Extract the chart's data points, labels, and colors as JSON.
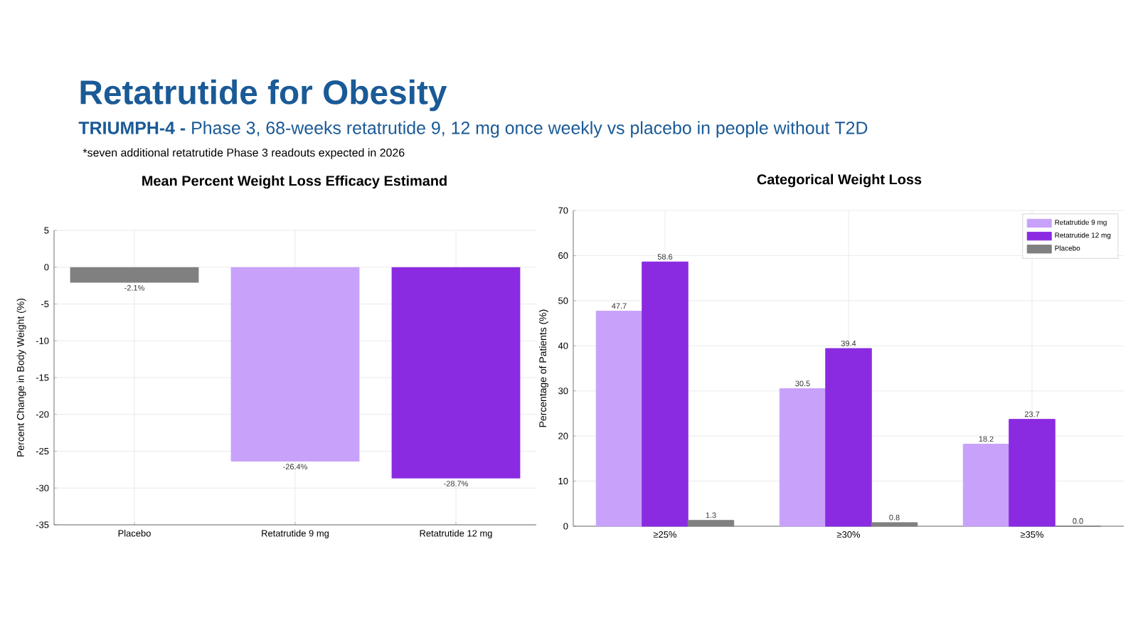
{
  "chart_data": [
    {
      "type": "bar",
      "title": "Mean Percent Weight Loss Efficacy Estimand",
      "ylabel": "Percent Change in Body Weight (%)",
      "annotations": [
        "Retatrutide for Obesity",
        "**TRIUMPH-4 -** Phase 3, 68-weeks retatrutide 9, 12 mg once weekly vs placebo in people without T2D",
        "*seven additional retatrutide Phase 3 readouts expected in 2026"
      ],
      "categories": [
        "Placebo",
        "Retatrutide 9 mg",
        "Retatrutide 12 mg"
      ],
      "values": [
        -2.1,
        -26.4,
        -28.7
      ],
      "value_labels": [
        "-2.1%",
        "-26.4%",
        "-28.7%"
      ],
      "colors": [
        "#808080",
        "#c8a2fa",
        "#8a2be2"
      ],
      "ylim": [
        -35,
        5
      ],
      "yticks": [
        -35,
        -30,
        -25,
        -20,
        -15,
        -10,
        -5,
        0,
        5
      ],
      "grid": true
    },
    {
      "type": "bar",
      "title": "Categorical Weight Loss",
      "ylabel": "Percentage of Patients (%)",
      "categories": [
        "≥25%",
        "≥30%",
        "≥35%"
      ],
      "series": [
        {
          "name": "Retatrutide 9 mg",
          "color": "#c8a2fa",
          "values": [
            47.7,
            30.5,
            18.2
          ],
          "value_labels": [
            "47.7",
            "30.5",
            "18.2"
          ]
        },
        {
          "name": "Retatrutide 12 mg",
          "color": "#8a2be2",
          "values": [
            58.6,
            39.4,
            23.7
          ],
          "value_labels": [
            "58.6",
            "39.4",
            "23.7"
          ]
        },
        {
          "name": "Placebo",
          "color": "#808080",
          "values": [
            1.3,
            0.8,
            0.0
          ],
          "value_labels": [
            "1.3",
            "0.8",
            "0.0"
          ]
        }
      ],
      "ylim": [
        0,
        70
      ],
      "yticks": [
        0,
        10,
        20,
        30,
        40,
        50,
        60,
        70
      ],
      "grid": true,
      "legend": "top right"
    }
  ]
}
